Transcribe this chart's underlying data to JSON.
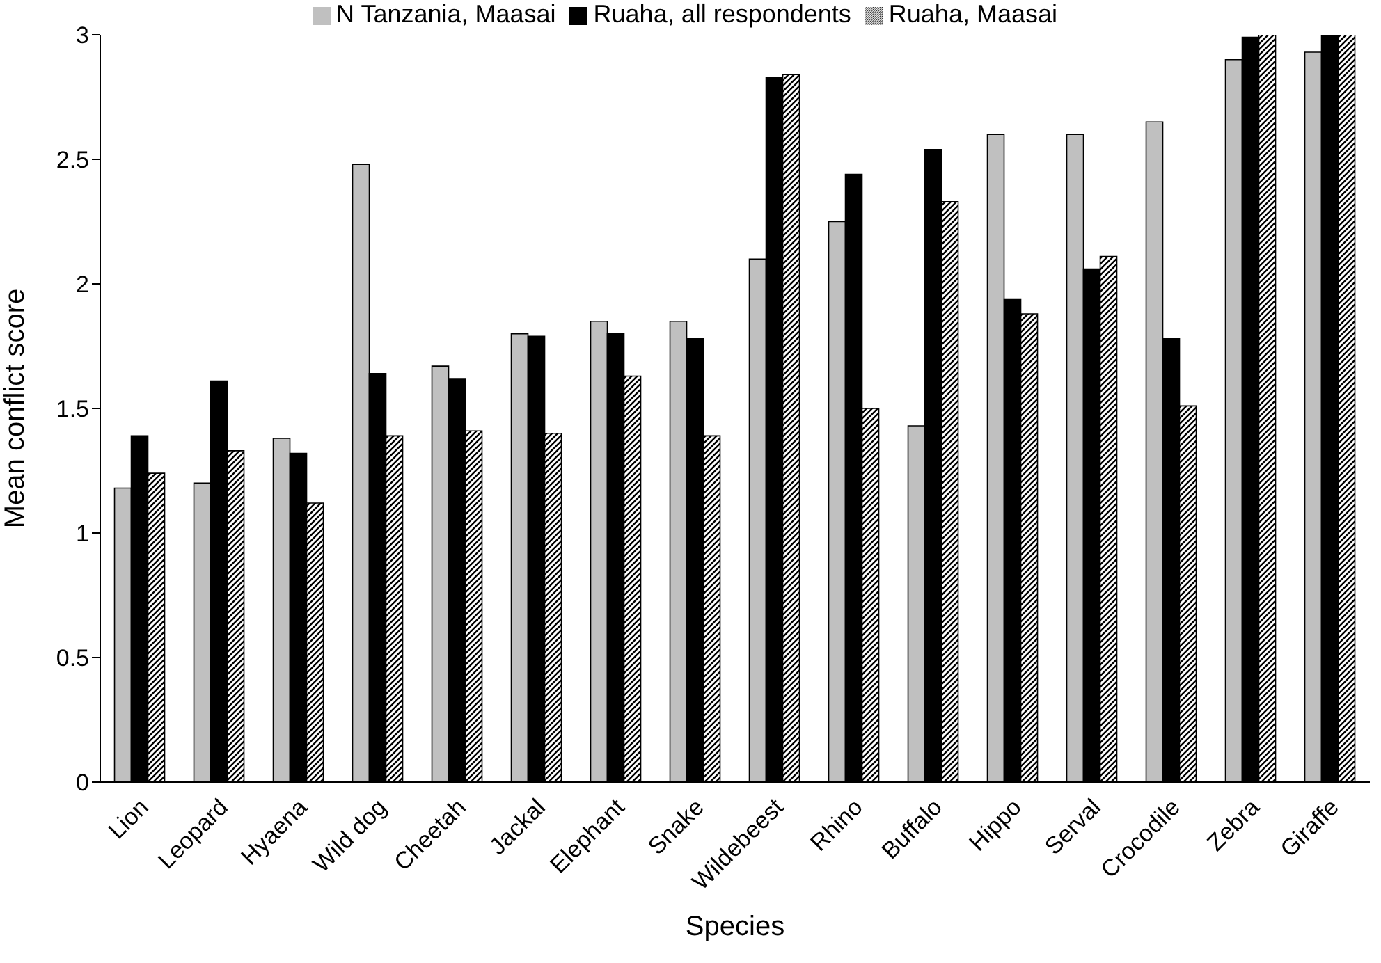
{
  "chart_data": {
    "type": "bar",
    "xlabel": "Species",
    "ylabel": "Mean conflict score",
    "categories": [
      "Lion",
      "Leopard",
      "Hyaena",
      "Wild dog",
      "Cheetah",
      "Jackal",
      "Elephant",
      "Snake",
      "Wildebeest",
      "Rhino",
      "Buffalo",
      "Hippo",
      "Serval",
      "Crocodile",
      "Zebra",
      "Giraffe"
    ],
    "series": [
      {
        "name": "N Tanzania, Maasai",
        "color": "#c0c0c0",
        "values": [
          1.18,
          1.2,
          1.38,
          2.48,
          1.67,
          1.8,
          1.85,
          1.85,
          2.1,
          2.25,
          1.43,
          2.6,
          2.6,
          2.65,
          2.9,
          2.93
        ]
      },
      {
        "name": "Ruaha, all respondents",
        "color": "#000000",
        "values": [
          1.39,
          1.61,
          1.32,
          1.64,
          1.62,
          1.79,
          1.8,
          1.78,
          2.83,
          2.44,
          2.54,
          1.94,
          2.06,
          1.78,
          2.99,
          3
        ]
      },
      {
        "name": "Ruaha, Maasai",
        "color": "#000000",
        "values": [
          1.24,
          1.33,
          1.12,
          1.39,
          1.41,
          1.4,
          1.63,
          1.39,
          2.84,
          1.5,
          2.33,
          1.88,
          2.11,
          1.51,
          3,
          3
        ]
      }
    ],
    "ylim": [
      0,
      3
    ],
    "yticks": [
      0,
      0.5,
      1,
      1.5,
      2,
      2.5,
      3
    ],
    "grid": false,
    "legend": "top"
  }
}
